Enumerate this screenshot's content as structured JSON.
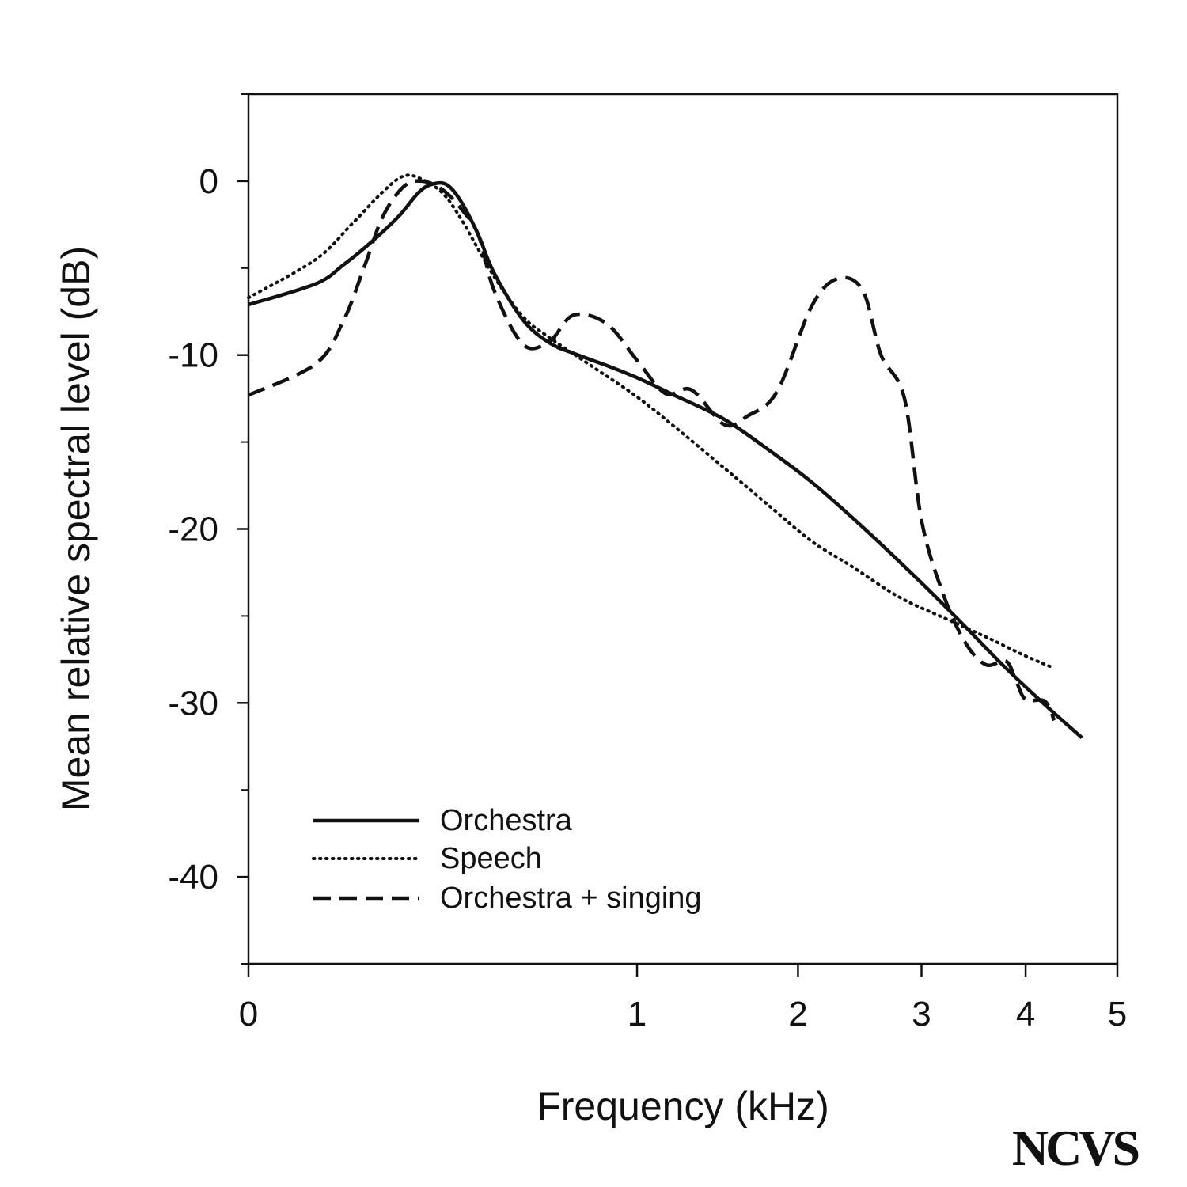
{
  "chart_data": {
    "type": "line",
    "xlabel": "Frequency (kHz)",
    "ylabel": "Mean relative spectral level (dB)",
    "x_scale": "sqrt",
    "xlim": [
      0,
      5
    ],
    "ylim": [
      -45,
      5
    ],
    "x_ticks": [
      0,
      1,
      2,
      3,
      4,
      5
    ],
    "y_ticks": [
      0,
      -10,
      -20,
      -30,
      -40
    ],
    "y_minor_ticks": [
      5,
      -5,
      -15,
      -25,
      -35,
      -45
    ],
    "grid": false,
    "legend_position": "bottom-left",
    "series": [
      {
        "name": "Orchestra",
        "style": "solid",
        "x": [
          0,
          0.03,
          0.06,
          0.1,
          0.15,
          0.19,
          0.22,
          0.26,
          0.3,
          0.35,
          0.4,
          0.5,
          0.6,
          0.7,
          0.85,
          1.0,
          1.2,
          1.5,
          1.8,
          2.1,
          2.5,
          3.0,
          3.4,
          3.8,
          4.2,
          4.6
        ],
        "y": [
          -7.1,
          -5.9,
          -4.8,
          -3.5,
          -2.0,
          -0.7,
          -0.2,
          -0.2,
          -1.2,
          -3.1,
          -5.3,
          -8.0,
          -9.3,
          -9.9,
          -10.6,
          -11.3,
          -12.3,
          -13.7,
          -15.5,
          -17.3,
          -19.9,
          -23.1,
          -25.6,
          -28.0,
          -30.1,
          -32.0
        ]
      },
      {
        "name": "Speech",
        "style": "dotted",
        "x": [
          0,
          0.03,
          0.07,
          0.12,
          0.16,
          0.2,
          0.25,
          0.3,
          0.4,
          0.5,
          0.6,
          0.8,
          1.0,
          1.2,
          1.5,
          1.8,
          2.1,
          2.4,
          2.8,
          3.2,
          3.6,
          4.0,
          4.3
        ],
        "y": [
          -6.7,
          -4.5,
          -2.5,
          -0.6,
          0.3,
          0.1,
          -0.7,
          -2.2,
          -5.5,
          -7.8,
          -9.0,
          -10.8,
          -12.4,
          -14.1,
          -16.5,
          -18.7,
          -20.7,
          -22.1,
          -23.9,
          -25.1,
          -26.2,
          -27.3,
          -28.0
        ]
      },
      {
        "name": "Orchestra + singing",
        "style": "dashed",
        "x": [
          0,
          0.03,
          0.06,
          0.09,
          0.12,
          0.16,
          0.2,
          0.25,
          0.3,
          0.35,
          0.4,
          0.5,
          0.6,
          0.7,
          0.85,
          1.0,
          1.15,
          1.3,
          1.5,
          1.65,
          1.85,
          2.1,
          2.3,
          2.5,
          2.65,
          2.85,
          3.0,
          3.2,
          3.4,
          3.6,
          3.8,
          3.9,
          4.0,
          4.2,
          4.3
        ],
        "y": [
          -12.3,
          -10.5,
          -8.0,
          -4.8,
          -2.0,
          -0.3,
          0.0,
          -0.5,
          -1.6,
          -3.1,
          -6.3,
          -9.4,
          -9.2,
          -7.7,
          -8.2,
          -10.3,
          -12.2,
          -12.0,
          -14.0,
          -13.5,
          -12.1,
          -7.2,
          -5.6,
          -6.3,
          -10.0,
          -12.5,
          -19.5,
          -23.8,
          -26.5,
          -27.8,
          -27.6,
          -28.7,
          -29.8,
          -29.9,
          -31.0
        ]
      }
    ]
  },
  "logo_text": "NCVS"
}
